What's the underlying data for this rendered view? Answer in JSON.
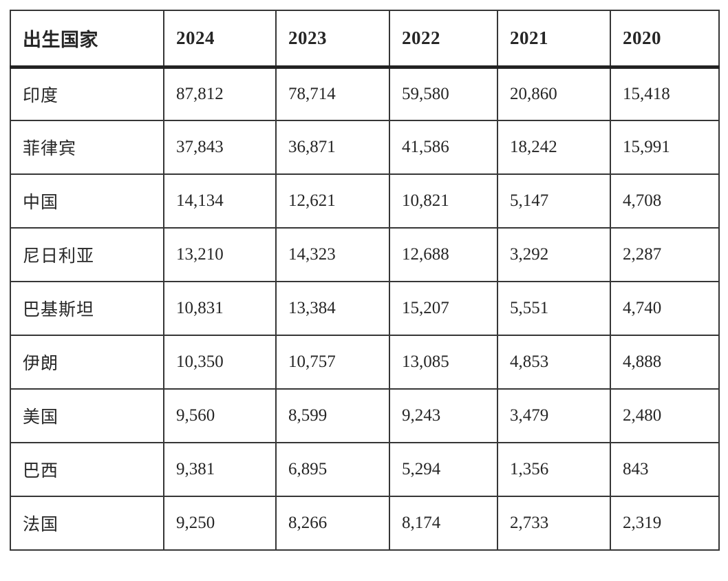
{
  "table": {
    "columns": [
      "出生国家",
      "2024",
      "2023",
      "2022",
      "2021",
      "2020"
    ],
    "rows": [
      {
        "country": "印度",
        "values": [
          "87,812",
          "78,714",
          "59,580",
          "20,860",
          "15,418"
        ]
      },
      {
        "country": "菲律宾",
        "values": [
          "37,843",
          "36,871",
          "41,586",
          "18,242",
          "15,991"
        ]
      },
      {
        "country": "中国",
        "values": [
          "14,134",
          "12,621",
          "10,821",
          "5,147",
          "4,708"
        ]
      },
      {
        "country": "尼日利亚",
        "values": [
          "13,210",
          "14,323",
          "12,688",
          "3,292",
          "2,287"
        ]
      },
      {
        "country": "巴基斯坦",
        "values": [
          "10,831",
          "13,384",
          "15,207",
          "5,551",
          "4,740"
        ]
      },
      {
        "country": "伊朗",
        "values": [
          "10,350",
          "10,757",
          "13,085",
          "4,853",
          "4,888"
        ]
      },
      {
        "country": "美国",
        "values": [
          "9,560",
          "8,599",
          "9,243",
          "3,479",
          "2,480"
        ]
      },
      {
        "country": "巴西",
        "values": [
          "9,381",
          "6,895",
          "5,294",
          "1,356",
          "843"
        ]
      },
      {
        "country": "法国",
        "values": [
          "9,250",
          "8,266",
          "8,174",
          "2,733",
          "2,319"
        ]
      }
    ],
    "colors": {
      "text": "#262626",
      "grid_border": "#363636",
      "header_separator": "#222222",
      "background": "#ffffff"
    }
  },
  "chart_data": {
    "type": "table",
    "title": "",
    "categories": [
      "2024",
      "2023",
      "2022",
      "2021",
      "2020"
    ],
    "row_header_label": "出生国家",
    "series": [
      {
        "name": "印度",
        "values": [
          87812,
          78714,
          59580,
          20860,
          15418
        ]
      },
      {
        "name": "菲律宾",
        "values": [
          37843,
          36871,
          41586,
          18242,
          15991
        ]
      },
      {
        "name": "中国",
        "values": [
          14134,
          12621,
          10821,
          5147,
          4708
        ]
      },
      {
        "name": "尼日利亚",
        "values": [
          13210,
          14323,
          12688,
          3292,
          2287
        ]
      },
      {
        "name": "巴基斯坦",
        "values": [
          10831,
          13384,
          15207,
          5551,
          4740
        ]
      },
      {
        "name": "伊朗",
        "values": [
          10350,
          10757,
          13085,
          4853,
          4888
        ]
      },
      {
        "name": "美国",
        "values": [
          9560,
          8599,
          9243,
          3479,
          2480
        ]
      },
      {
        "name": "巴西",
        "values": [
          9381,
          6895,
          5294,
          1356,
          843
        ]
      },
      {
        "name": "法国",
        "values": [
          9250,
          8266,
          8174,
          2733,
          2319
        ]
      }
    ],
    "layout": {
      "grid": "on",
      "header_row": true,
      "first_column_is_row_label": true
    }
  }
}
